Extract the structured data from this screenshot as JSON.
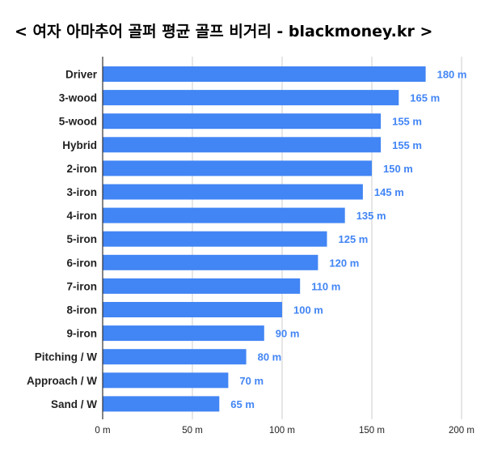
{
  "chart_data": {
    "type": "bar",
    "orientation": "horizontal",
    "title": "< 여자 아마추어 골퍼 평균 골프 비거리 - blackmoney.kr >",
    "categories": [
      "Driver",
      "3-wood",
      "5-wood",
      "Hybrid",
      "2-iron",
      "3-iron",
      "4-iron",
      "5-iron",
      "6-iron",
      "7-iron",
      "8-iron",
      "9-iron",
      "Pitching / W",
      "Approach / W",
      "Sand / W"
    ],
    "values": [
      180,
      165,
      155,
      155,
      150,
      145,
      135,
      125,
      120,
      110,
      100,
      90,
      80,
      70,
      65
    ],
    "value_labels": [
      "180 m",
      "165 m",
      "155 m",
      "155 m",
      "150 m",
      "145 m",
      "135 m",
      "125 m",
      "120 m",
      "110 m",
      "100 m",
      "90 m",
      "80 m",
      "70 m",
      "65 m"
    ],
    "xlim": [
      0,
      200
    ],
    "xticks": [
      0,
      50,
      100,
      150,
      200
    ],
    "xtick_labels": [
      "0 m",
      "50 m",
      "100 m",
      "150 m",
      "200 m"
    ],
    "xlabel": "",
    "ylabel": "",
    "grid": "vertical",
    "legend": "none",
    "colors": {
      "bar": "#4285f4",
      "value_label": "#4285f4",
      "grid": "#cccccc",
      "axis": "#333333",
      "text": "#222222"
    }
  }
}
